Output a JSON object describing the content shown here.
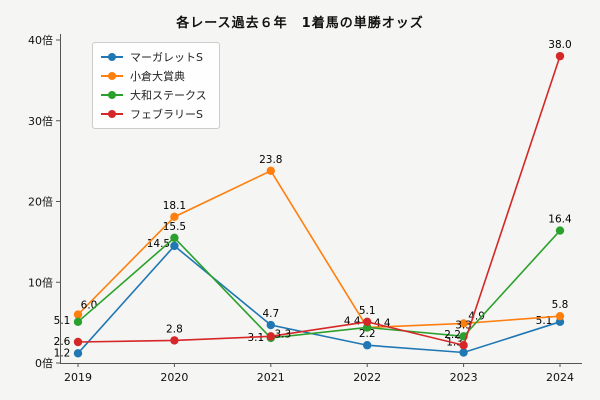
{
  "chart_data": {
    "type": "line",
    "title": "各レース過去６年　1着馬の単勝オッズ",
    "categories": [
      "2019",
      "2020",
      "2021",
      "2022",
      "2023",
      "2024"
    ],
    "series": [
      {
        "name": "マーガレットS",
        "color": "#1f77b4",
        "values": [
          1.2,
          14.5,
          4.7,
          2.2,
          1.3,
          5.1
        ]
      },
      {
        "name": "小倉大賞典",
        "color": "#ff7f0e",
        "values": [
          6.0,
          18.1,
          23.8,
          4.4,
          4.9,
          5.8
        ]
      },
      {
        "name": "大和ステークス",
        "color": "#2ca02c",
        "values": [
          5.1,
          15.5,
          3.1,
          4.4,
          3.3,
          16.4
        ]
      },
      {
        "name": "フェブラリーS",
        "color": "#d62728",
        "values": [
          2.6,
          2.8,
          3.3,
          5.1,
          2.2,
          38.0
        ]
      }
    ],
    "ylim": [
      0,
      40
    ],
    "yticks": [
      0,
      10,
      20,
      30,
      40
    ],
    "ytick_suffix": "倍",
    "xlabel": "",
    "ylabel": "",
    "grid": false,
    "legend_position": "upper left",
    "marker": "circle",
    "point_labels": true,
    "label_decimals": 1
  }
}
